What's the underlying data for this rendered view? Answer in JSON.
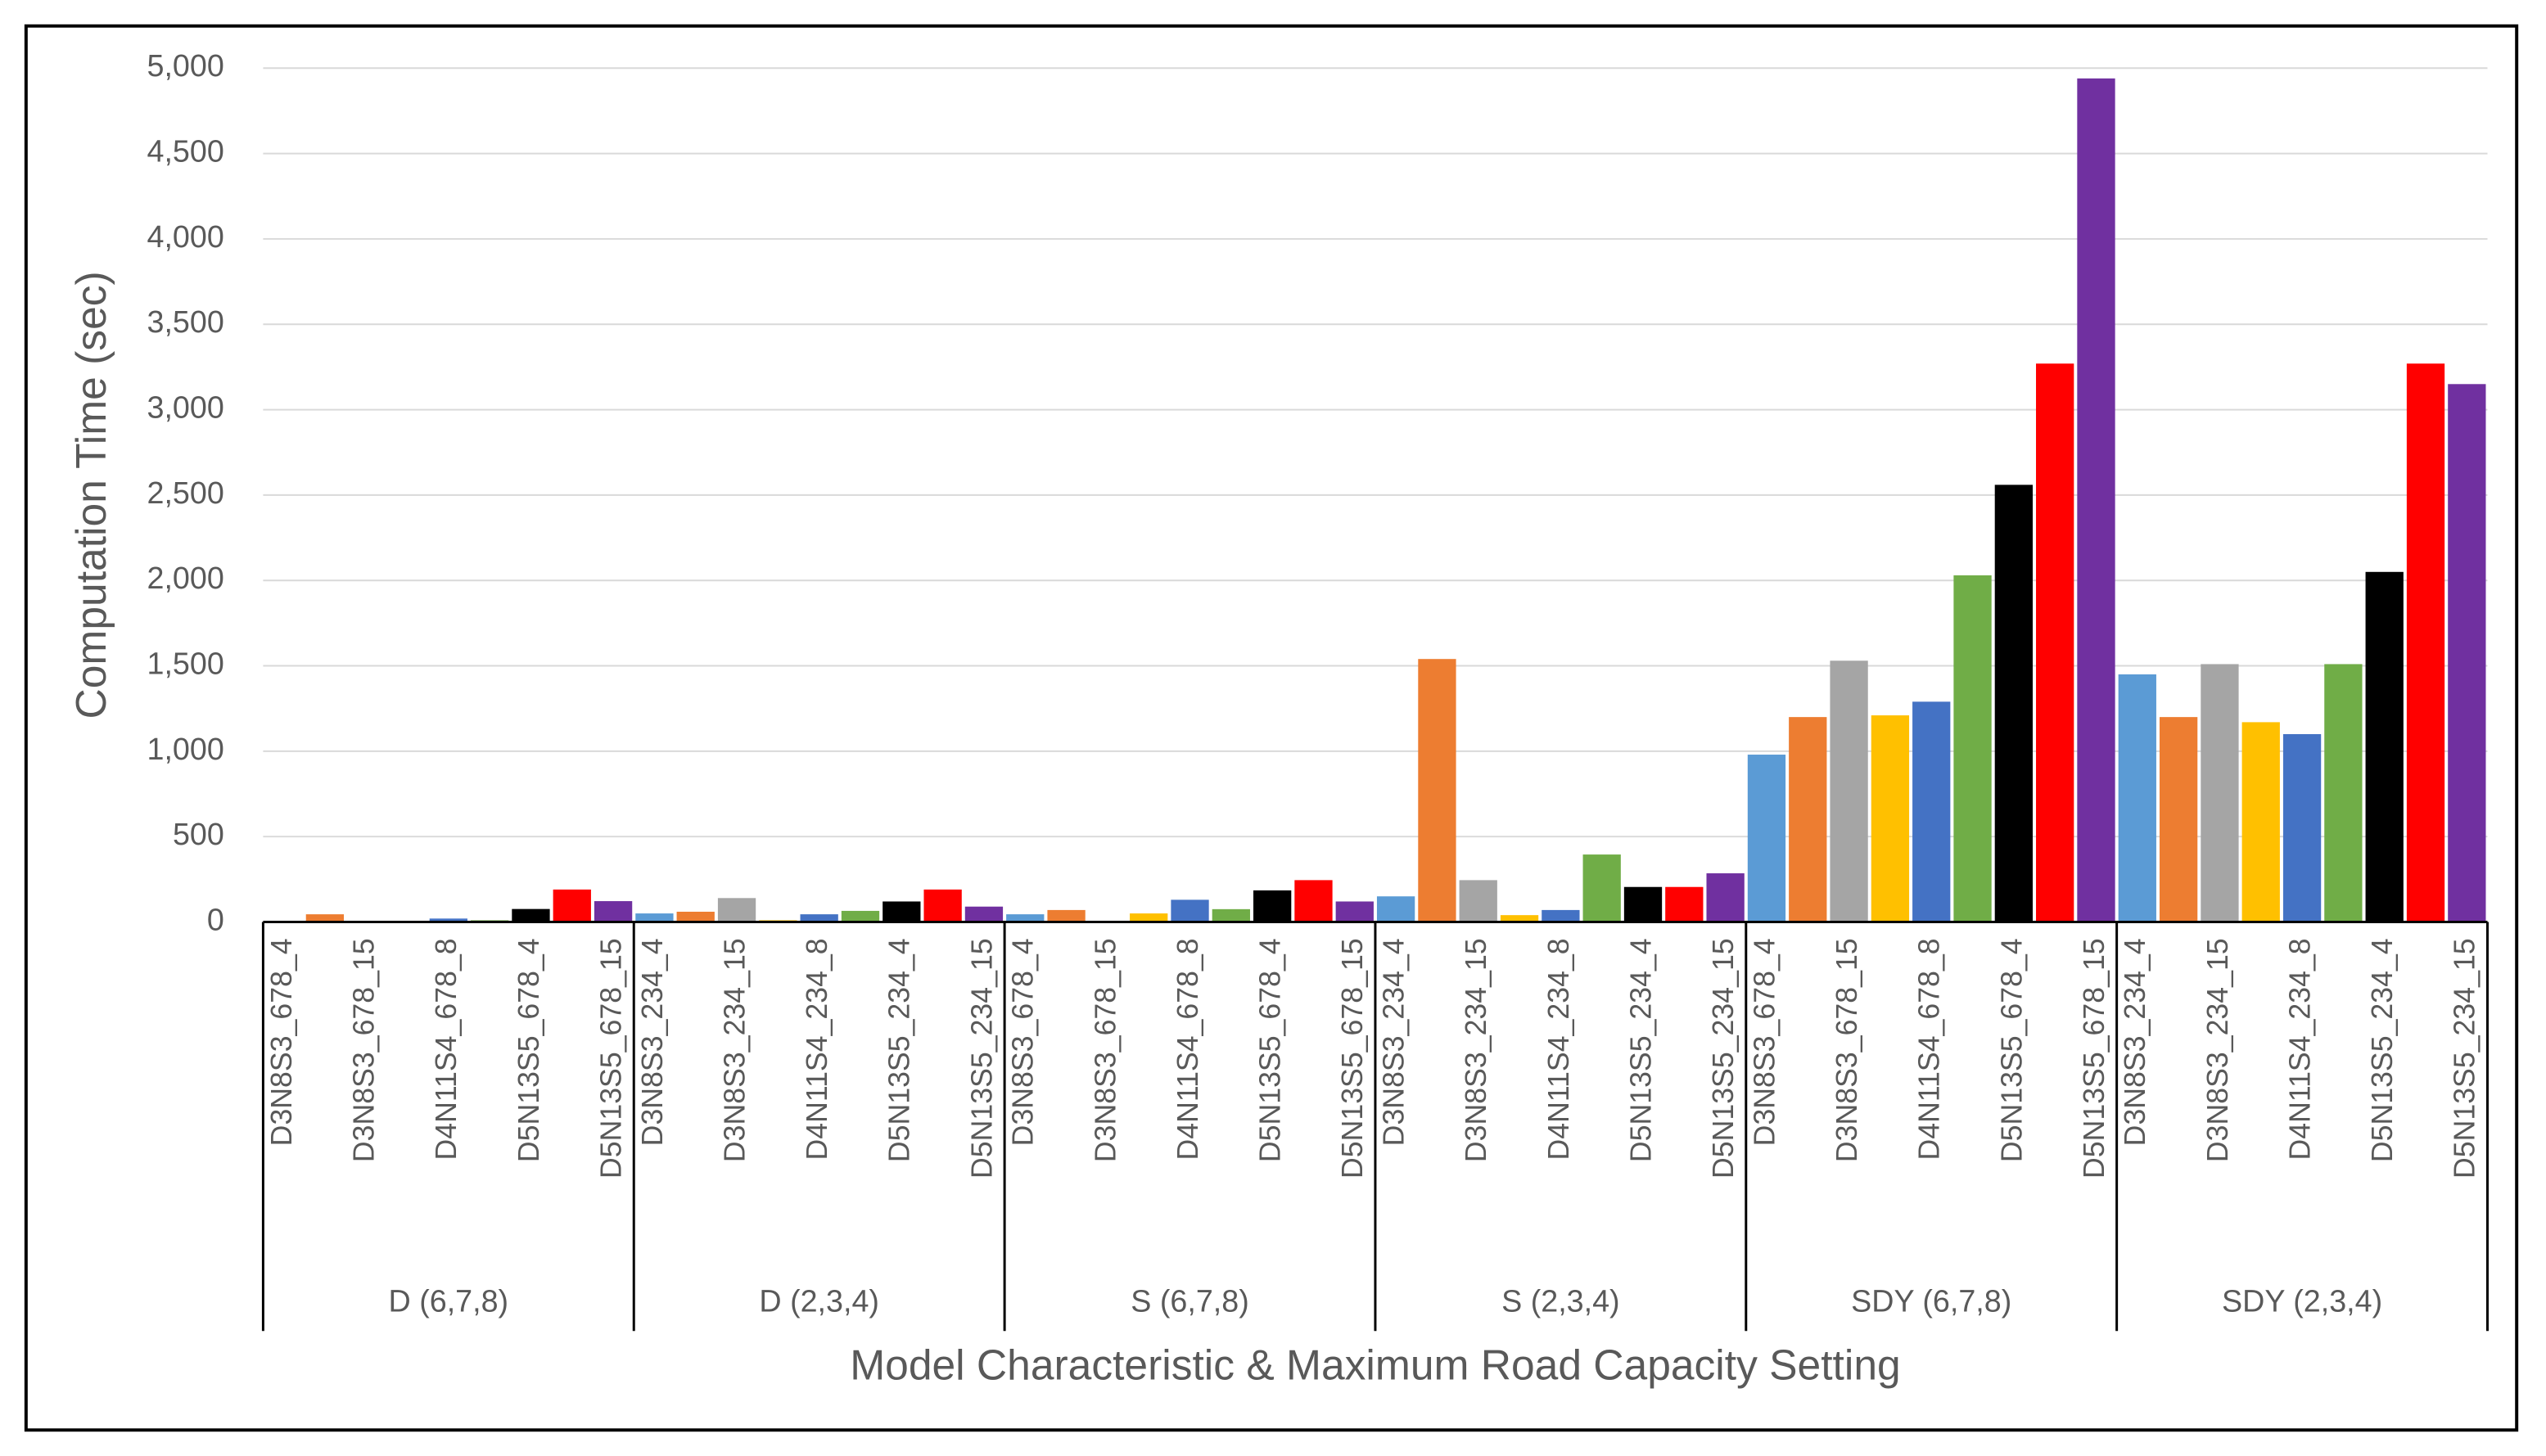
{
  "chart_data": {
    "type": "bar",
    "y_label": "Computation Time (sec)",
    "x_label": "Model Characteristic & Maximum Road Capacity Setting",
    "colors": [
      "#5b9bd5",
      "#ed7d31",
      "#a5a5a5",
      "#ffc000",
      "#4472c4",
      "#70ad47",
      "#000000",
      "#ff0000",
      "#7030a0"
    ],
    "ylim": [
      0,
      5000
    ],
    "yticks": [
      0,
      500,
      {
        "value": 1000,
        "label": "1,000"
      },
      {
        "value": 1500,
        "label": "1,500"
      },
      {
        "value": 2000,
        "label": "2,000"
      },
      {
        "value": 2500,
        "label": "2,500"
      },
      {
        "value": 3000,
        "label": "3,000"
      },
      {
        "value": 3500,
        "label": "3,500"
      },
      {
        "value": 4000,
        "label": "4,000"
      },
      {
        "value": 4500,
        "label": "4,500"
      },
      {
        "value": 5000,
        "label": "5,000"
      }
    ],
    "grid": true,
    "groups": [
      {
        "name": "D (6,7,8)",
        "categories": [
          "D3N8S3_678_4",
          null,
          "D3N8S3_678_15",
          null,
          "D4N11S4_678_8",
          null,
          "D5N13S5_678_4",
          null,
          "D5N13S5_678_15"
        ],
        "values": [
          0,
          45,
          0,
          0,
          20,
          10,
          76,
          190,
          122
        ]
      },
      {
        "name": "D (2,3,4)",
        "categories": [
          "D3N8S3_234_4",
          null,
          "D3N8S3_234_15",
          null,
          "D4N11S4_234_8",
          null,
          "D5N13S5_234_4",
          null,
          "D5N13S5_234_15"
        ],
        "values": [
          50,
          60,
          140,
          10,
          45,
          65,
          120,
          190,
          90
        ]
      },
      {
        "name": "S (6,7,8)",
        "categories": [
          "D3N8S3_678_4",
          null,
          "D3N8S3_678_15",
          null,
          "D4N11S4_678_8",
          null,
          "D5N13S5_678_4",
          null,
          "D5N13S5_678_15"
        ],
        "values": [
          45,
          70,
          5,
          50,
          130,
          75,
          185,
          245,
          120
        ]
      },
      {
        "name": "S (2,3,4)",
        "categories": [
          "D3N8S3_234_4",
          null,
          "D3N8S3_234_15",
          null,
          "D4N11S4_234_8",
          null,
          "D5N13S5_234_4",
          null,
          "D5N13S5_234_15"
        ],
        "values": [
          150,
          1540,
          245,
          40,
          70,
          395,
          205,
          205,
          285
        ]
      },
      {
        "name": "SDY (6,7,8)",
        "categories": [
          "D3N8S3_678_4",
          null,
          "D3N8S3_678_15",
          null,
          "D4N11S4_678_8",
          null,
          "D5N13S5_678_4",
          null,
          "D5N13S5_678_15"
        ],
        "values": [
          980,
          1200,
          1530,
          1210,
          1290,
          2030,
          2560,
          3270,
          4940
        ]
      },
      {
        "name": "SDY (2,3,4)",
        "categories": [
          "D3N8S3_234_4",
          null,
          "D3N8S3_234_15",
          null,
          "D4N11S4_234_8",
          null,
          "D5N13S5_234_4",
          null,
          "D5N13S5_234_15"
        ],
        "values": [
          1450,
          1200,
          1510,
          1170,
          1100,
          1510,
          2050,
          3270,
          3150
        ]
      }
    ]
  }
}
